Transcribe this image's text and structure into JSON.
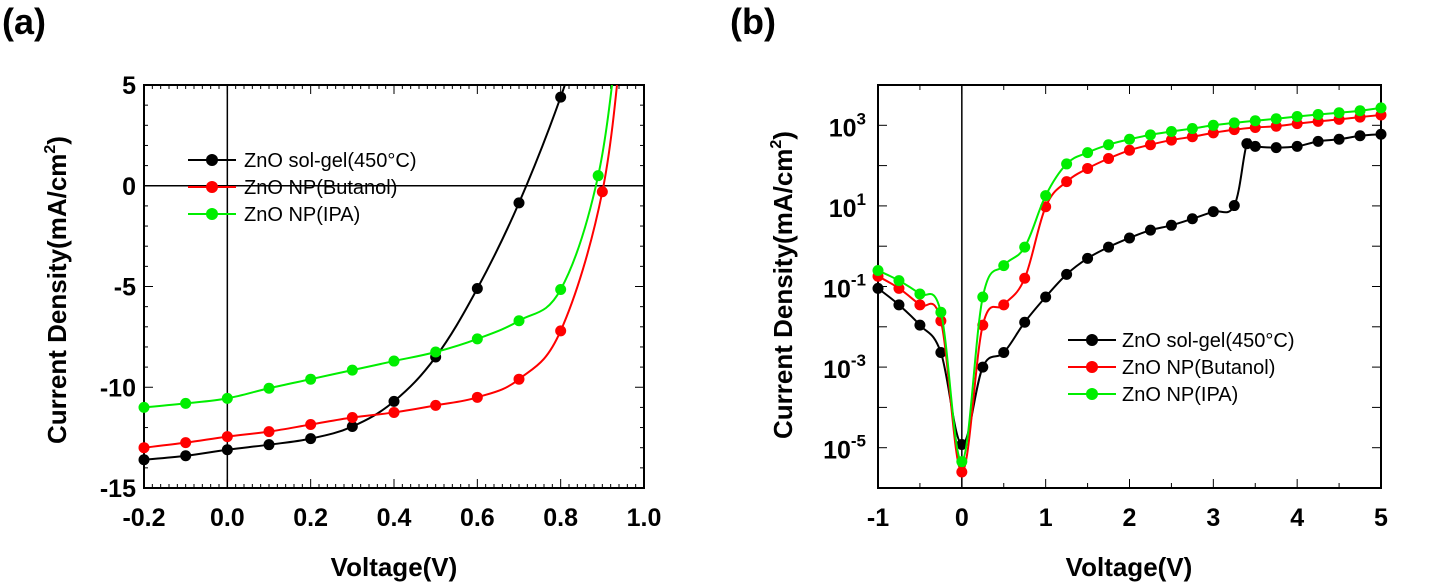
{
  "chart_data": [
    {
      "type": "line",
      "panel_label": "(a)",
      "xlabel": "Voltage(V)",
      "ylabel": "Current Density(mA/cm",
      "ylabel_sup": "2",
      "ylabel_close": ")",
      "xlim": [
        -0.2,
        1.0
      ],
      "ylim": [
        -15,
        5
      ],
      "x_ticks": [
        "-0.2",
        "0.0",
        "0.2",
        "0.4",
        "0.6",
        "0.8",
        "1.0"
      ],
      "y_ticks": [
        "-15",
        "-10",
        "-5",
        "0",
        "5"
      ],
      "legend_position": "upper-left",
      "series": [
        {
          "name": "ZnO sol-gel(450°C)",
          "color": "#000000",
          "x": [
            -0.2,
            -0.1,
            0.0,
            0.1,
            0.2,
            0.3,
            0.4,
            0.5,
            0.6,
            0.7,
            0.8
          ],
          "y": [
            -13.6,
            -13.4,
            -13.1,
            -12.85,
            -12.55,
            -11.95,
            -10.7,
            -8.5,
            -5.1,
            -0.85,
            4.4
          ],
          "x_line_end": 0.87,
          "y_line_end": 9.0
        },
        {
          "name": "ZnO NP(Butanol)",
          "color": "#ff0000",
          "x": [
            -0.2,
            -0.1,
            0.0,
            0.1,
            0.2,
            0.3,
            0.4,
            0.5,
            0.6,
            0.7,
            0.8,
            0.9
          ],
          "y": [
            -13.0,
            -12.75,
            -12.45,
            -12.2,
            -11.85,
            -11.5,
            -11.25,
            -10.9,
            -10.5,
            -9.6,
            -7.2,
            -0.3
          ],
          "x_line_end": 0.95,
          "y_line_end": 8.0
        },
        {
          "name": "ZnO NP(IPA)",
          "color": "#00ee00",
          "x": [
            -0.2,
            -0.1,
            0.0,
            0.1,
            0.2,
            0.3,
            0.4,
            0.5,
            0.6,
            0.7,
            0.8,
            0.89
          ],
          "y": [
            -11.0,
            -10.8,
            -10.55,
            -10.05,
            -9.6,
            -9.15,
            -8.7,
            -8.25,
            -7.6,
            -6.7,
            -5.15,
            0.5
          ],
          "x_line_end": 0.94,
          "y_line_end": 8.0
        }
      ]
    },
    {
      "type": "line",
      "panel_label": "(b)",
      "xlabel": "Voltage(V)",
      "ylabel": "Current Density(mA/cm",
      "ylabel_sup": "2",
      "ylabel_close": ")",
      "xlim": [
        -1,
        5
      ],
      "ylim": [
        1e-06,
        10000
      ],
      "yscale": "log",
      "x_ticks": [
        "-1",
        "0",
        "1",
        "2",
        "3",
        "4",
        "5"
      ],
      "y_ticks": [
        {
          "base": "10",
          "exp": "-5",
          "value": 1e-05
        },
        {
          "base": "10",
          "exp": "-3",
          "value": 0.001
        },
        {
          "base": "10",
          "exp": "-1",
          "value": 0.1
        },
        {
          "base": "10",
          "exp": "1",
          "value": 10
        },
        {
          "base": "10",
          "exp": "3",
          "value": 1000
        }
      ],
      "legend_position": "center-right",
      "series": [
        {
          "name": " ZnO sol-gel(450°C)",
          "color": "#000000",
          "x": [
            -1,
            -0.75,
            -0.5,
            -0.25,
            0,
            0.25,
            0.5,
            0.75,
            1.0,
            1.25,
            1.5,
            1.75,
            2.0,
            2.25,
            2.5,
            2.75,
            3.0,
            3.25,
            3.4,
            3.5,
            3.75,
            4.0,
            4.25,
            4.5,
            4.75,
            5.0
          ],
          "y": [
            0.09,
            0.035,
            0.011,
            0.0023,
            1.2e-05,
            0.001,
            0.0023,
            0.013,
            0.055,
            0.2,
            0.5,
            0.95,
            1.6,
            2.5,
            3.3,
            4.8,
            7.2,
            10.2,
            350,
            300,
            280,
            300,
            400,
            450,
            550,
            600
          ]
        },
        {
          "name": "ZnO NP(Butanol)",
          "color": "#ff0000",
          "x": [
            -1,
            -0.75,
            -0.5,
            -0.25,
            0,
            0.25,
            0.5,
            0.75,
            1.0,
            1.25,
            1.5,
            1.75,
            2.0,
            2.25,
            2.5,
            2.75,
            3.0,
            3.25,
            3.5,
            3.75,
            4.0,
            4.25,
            4.5,
            4.75,
            5.0
          ],
          "y": [
            0.18,
            0.09,
            0.035,
            0.014,
            2.5e-06,
            0.011,
            0.035,
            0.16,
            9.5,
            40,
            85,
            150,
            240,
            330,
            430,
            520,
            650,
            780,
            880,
            950,
            1100,
            1250,
            1400,
            1600,
            1800
          ]
        },
        {
          "name": "ZnO NP(IPA)",
          "color": "#00ee00",
          "x": [
            -1,
            -0.75,
            -0.5,
            -0.25,
            0,
            0.25,
            0.5,
            0.75,
            1.0,
            1.25,
            1.5,
            1.75,
            2.0,
            2.25,
            2.5,
            2.75,
            3.0,
            3.25,
            3.5,
            3.75,
            4.0,
            4.25,
            4.5,
            4.75,
            5.0
          ],
          "y": [
            0.25,
            0.14,
            0.065,
            0.023,
            4.5e-06,
            0.055,
            0.33,
            0.95,
            18,
            110,
            210,
            330,
            450,
            580,
            700,
            830,
            1000,
            1150,
            1300,
            1450,
            1650,
            1850,
            2050,
            2300,
            2700
          ]
        }
      ]
    }
  ]
}
